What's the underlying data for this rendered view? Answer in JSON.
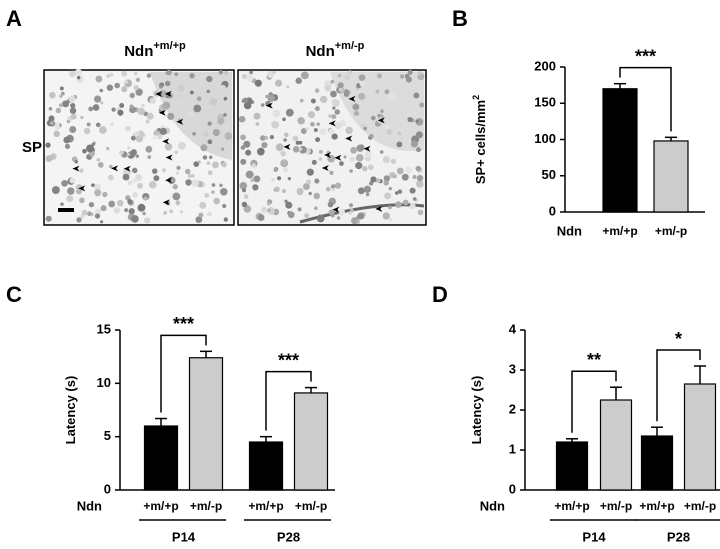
{
  "panel_a": {
    "label": "A",
    "row_label": "SP",
    "columns": [
      {
        "base": "Ndn",
        "sup": "+m/+p"
      },
      {
        "base": "Ndn",
        "sup": "+m/-p"
      }
    ]
  },
  "chart_data": [
    {
      "type": "bar",
      "panel": "B",
      "y_label": "SP+ cells/mm",
      "y_label_sup": "2",
      "x_label": "Ndn",
      "categories": [
        "+m/+p",
        "+m/-p"
      ],
      "values": [
        170,
        98
      ],
      "errors": [
        7,
        5
      ],
      "colors": [
        "#000000",
        "#cccccc"
      ],
      "ylim": [
        0,
        200
      ],
      "yticks": [
        0,
        50,
        100,
        150,
        200
      ],
      "significance": "***"
    },
    {
      "type": "grouped_bar",
      "panel": "C",
      "y_label": "Latency (s)",
      "x_label": "Ndn",
      "categories": [
        "P14",
        "P28"
      ],
      "series": [
        {
          "name": "+m/+p",
          "color": "#000000",
          "values": [
            6.0,
            4.5
          ],
          "errors": [
            0.7,
            0.5
          ]
        },
        {
          "name": "+m/-p",
          "color": "#cccccc",
          "values": [
            12.4,
            9.1
          ],
          "errors": [
            0.6,
            0.5
          ]
        }
      ],
      "ylim": [
        0,
        15
      ],
      "yticks": [
        0,
        5,
        10,
        15
      ],
      "significance": [
        "***",
        "***"
      ]
    },
    {
      "type": "grouped_bar",
      "panel": "D",
      "y_label": "Latency (s)",
      "x_label": "Ndn",
      "categories": [
        "P14",
        "P28"
      ],
      "series": [
        {
          "name": "+m/+p",
          "color": "#000000",
          "values": [
            1.2,
            1.35
          ],
          "errors": [
            0.08,
            0.22
          ]
        },
        {
          "name": "+m/-p",
          "color": "#cccccc",
          "values": [
            2.25,
            2.65
          ],
          "errors": [
            0.32,
            0.45
          ]
        }
      ],
      "ylim": [
        0,
        4
      ],
      "yticks": [
        0,
        1,
        2,
        3,
        4
      ],
      "significance": [
        "**",
        "*"
      ]
    }
  ]
}
